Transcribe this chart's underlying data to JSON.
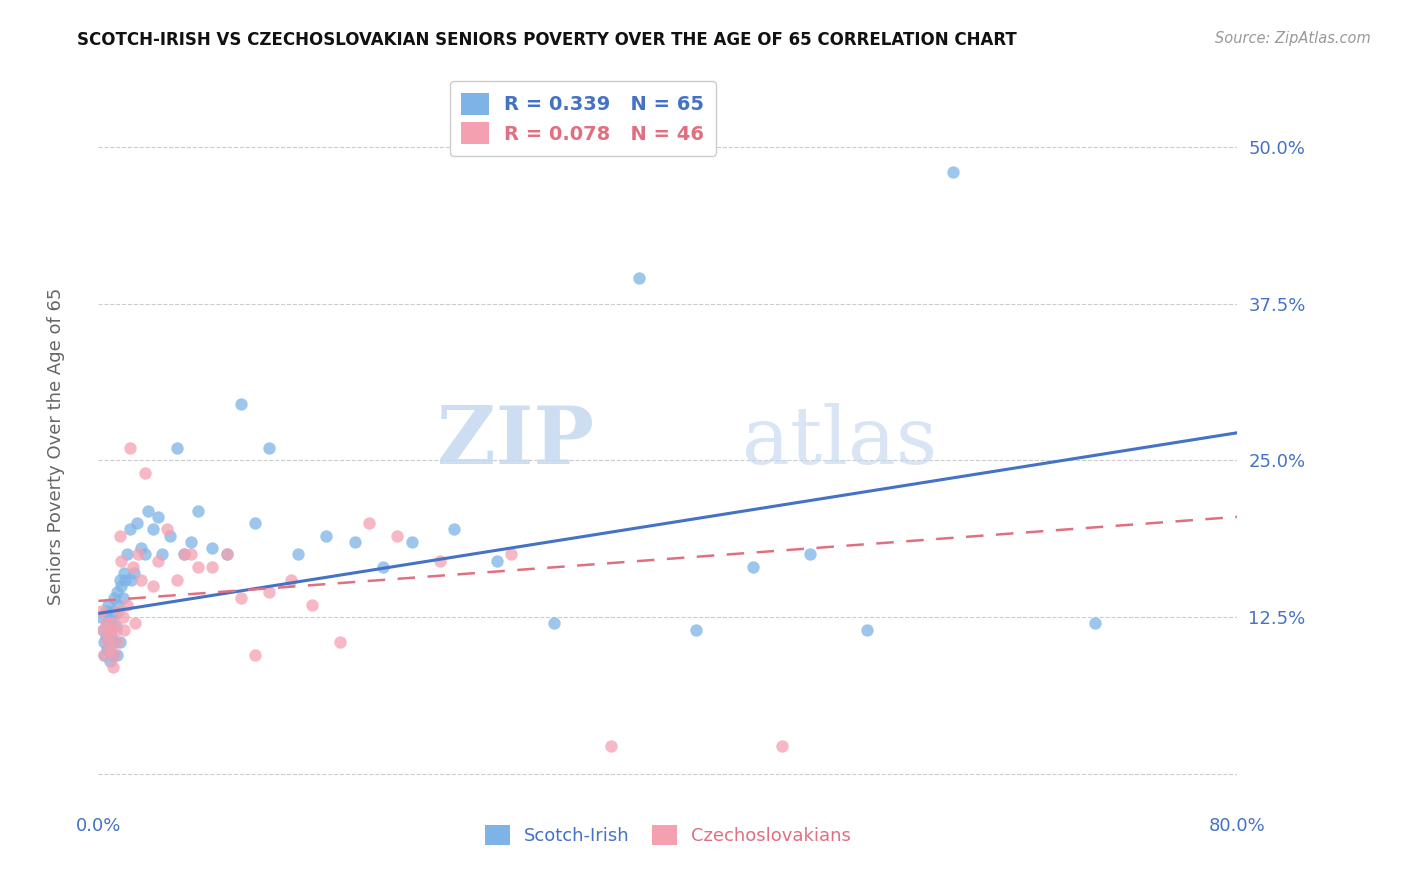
{
  "title": "SCOTCH-IRISH VS CZECHOSLOVAKIAN SENIORS POVERTY OVER THE AGE OF 65 CORRELATION CHART",
  "source": "Source: ZipAtlas.com",
  "ylabel": "Seniors Poverty Over the Age of 65",
  "xlim": [
    0.0,
    0.8
  ],
  "ylim": [
    -0.03,
    0.56
  ],
  "yticks": [
    0.0,
    0.125,
    0.25,
    0.375,
    0.5
  ],
  "ytick_labels": [
    "",
    "12.5%",
    "25.0%",
    "37.5%",
    "50.0%"
  ],
  "xticks": [
    0.0,
    0.1,
    0.2,
    0.3,
    0.4,
    0.5,
    0.6,
    0.7,
    0.8
  ],
  "xtick_labels": [
    "0.0%",
    "",
    "",
    "",
    "",
    "",
    "",
    "",
    "80.0%"
  ],
  "grid_color": "#cccccc",
  "background_color": "#ffffff",
  "scotch_irish_color": "#7eb3e8",
  "czechoslovakian_color": "#f4a0b0",
  "scotch_irish_line_color": "#4472c4",
  "czechoslovakian_line_color": "#e07080",
  "legend_scotch_label": "R = 0.339   N = 65",
  "legend_czech_label": "R = 0.078   N = 46",
  "legend_labels": [
    "Scotch-Irish",
    "Czechoslovakians"
  ],
  "watermark_zip": "ZIP",
  "watermark_atlas": "atlas",
  "scotch_irish_x": [
    0.002,
    0.003,
    0.004,
    0.004,
    0.005,
    0.005,
    0.006,
    0.006,
    0.007,
    0.007,
    0.008,
    0.008,
    0.009,
    0.009,
    0.01,
    0.01,
    0.011,
    0.011,
    0.012,
    0.012,
    0.013,
    0.013,
    0.014,
    0.015,
    0.015,
    0.016,
    0.017,
    0.018,
    0.019,
    0.02,
    0.022,
    0.023,
    0.025,
    0.027,
    0.03,
    0.033,
    0.035,
    0.038,
    0.042,
    0.045,
    0.05,
    0.055,
    0.06,
    0.065,
    0.07,
    0.08,
    0.09,
    0.1,
    0.11,
    0.12,
    0.14,
    0.16,
    0.18,
    0.2,
    0.22,
    0.25,
    0.28,
    0.32,
    0.38,
    0.42,
    0.46,
    0.5,
    0.54,
    0.6,
    0.7
  ],
  "scotch_irish_y": [
    0.125,
    0.115,
    0.105,
    0.095,
    0.13,
    0.11,
    0.12,
    0.1,
    0.135,
    0.108,
    0.115,
    0.09,
    0.125,
    0.11,
    0.13,
    0.095,
    0.14,
    0.105,
    0.118,
    0.128,
    0.145,
    0.095,
    0.135,
    0.155,
    0.105,
    0.15,
    0.14,
    0.16,
    0.155,
    0.175,
    0.195,
    0.155,
    0.16,
    0.2,
    0.18,
    0.175,
    0.21,
    0.195,
    0.205,
    0.175,
    0.19,
    0.26,
    0.175,
    0.185,
    0.21,
    0.18,
    0.175,
    0.295,
    0.2,
    0.26,
    0.175,
    0.19,
    0.185,
    0.165,
    0.185,
    0.195,
    0.17,
    0.12,
    0.395,
    0.115,
    0.165,
    0.175,
    0.115,
    0.48,
    0.12
  ],
  "czechoslovakian_x": [
    0.002,
    0.003,
    0.004,
    0.005,
    0.006,
    0.007,
    0.008,
    0.009,
    0.01,
    0.01,
    0.011,
    0.012,
    0.013,
    0.014,
    0.015,
    0.016,
    0.017,
    0.018,
    0.02,
    0.022,
    0.024,
    0.026,
    0.028,
    0.03,
    0.033,
    0.038,
    0.042,
    0.048,
    0.055,
    0.06,
    0.065,
    0.07,
    0.08,
    0.09,
    0.1,
    0.11,
    0.12,
    0.135,
    0.15,
    0.17,
    0.19,
    0.21,
    0.24,
    0.29,
    0.36,
    0.48
  ],
  "czechoslovakian_y": [
    0.13,
    0.115,
    0.095,
    0.12,
    0.105,
    0.11,
    0.1,
    0.115,
    0.12,
    0.085,
    0.095,
    0.115,
    0.105,
    0.13,
    0.19,
    0.17,
    0.125,
    0.115,
    0.135,
    0.26,
    0.165,
    0.12,
    0.175,
    0.155,
    0.24,
    0.15,
    0.17,
    0.195,
    0.155,
    0.175,
    0.175,
    0.165,
    0.165,
    0.175,
    0.14,
    0.095,
    0.145,
    0.155,
    0.135,
    0.105,
    0.2,
    0.19,
    0.17,
    0.175,
    0.022,
    0.022
  ],
  "si_line_x0": 0.0,
  "si_line_x1": 0.8,
  "si_line_y0": 0.128,
  "si_line_y1": 0.272,
  "cz_line_x0": 0.0,
  "cz_line_x1": 0.8,
  "cz_line_y0": 0.138,
  "cz_line_y1": 0.205
}
